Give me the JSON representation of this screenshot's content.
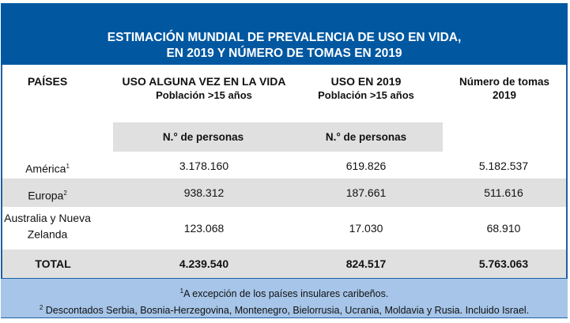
{
  "title": {
    "line1": "ESTIMACIÓN MUNDIAL DE PREVALENCIA DE USO EN VIDA,",
    "line2": "EN 2019 Y NÚMERO DE TOMAS EN 2019"
  },
  "columns": [
    {
      "label": "PAÍSES"
    },
    {
      "label": "USO ALGUNA VEZ EN LA VIDA",
      "sub": "Población >15 años",
      "unit": "N.° de personas"
    },
    {
      "label": "USO EN 2019",
      "sub": "Población >15 años",
      "unit": "N.° de personas"
    },
    {
      "label": "Número de tomas 2019"
    }
  ],
  "rows": [
    {
      "region": "América",
      "sup": "1",
      "lifetime": "3.178.160",
      "year": "619.826",
      "doses": "5.182.537"
    },
    {
      "region": "Europa",
      "sup": "2",
      "lifetime": "938.312",
      "year": "187.661",
      "doses": "511.616"
    },
    {
      "region": "Australia y Nueva Zelanda",
      "sup": "",
      "lifetime": "123.068",
      "year": "17.030",
      "doses": "68.910"
    }
  ],
  "total": {
    "label": "TOTAL",
    "lifetime": "4.239.540",
    "year": "824.517",
    "doses": "5.763.063"
  },
  "footnotes": [
    {
      "mark": "1",
      "text": "A excepción de los países insulares caribeños."
    },
    {
      "mark": "2",
      "text": "Descontados Serbia, Bosnia-Herzegovina, Montenegro, Bielorrusia, Ucrania, Moldavia y Rusia. Incluido Israel."
    }
  ],
  "colors": {
    "header": "#0158a1",
    "footer": "#a6c5e8",
    "stripe": "#e0e0e0"
  }
}
